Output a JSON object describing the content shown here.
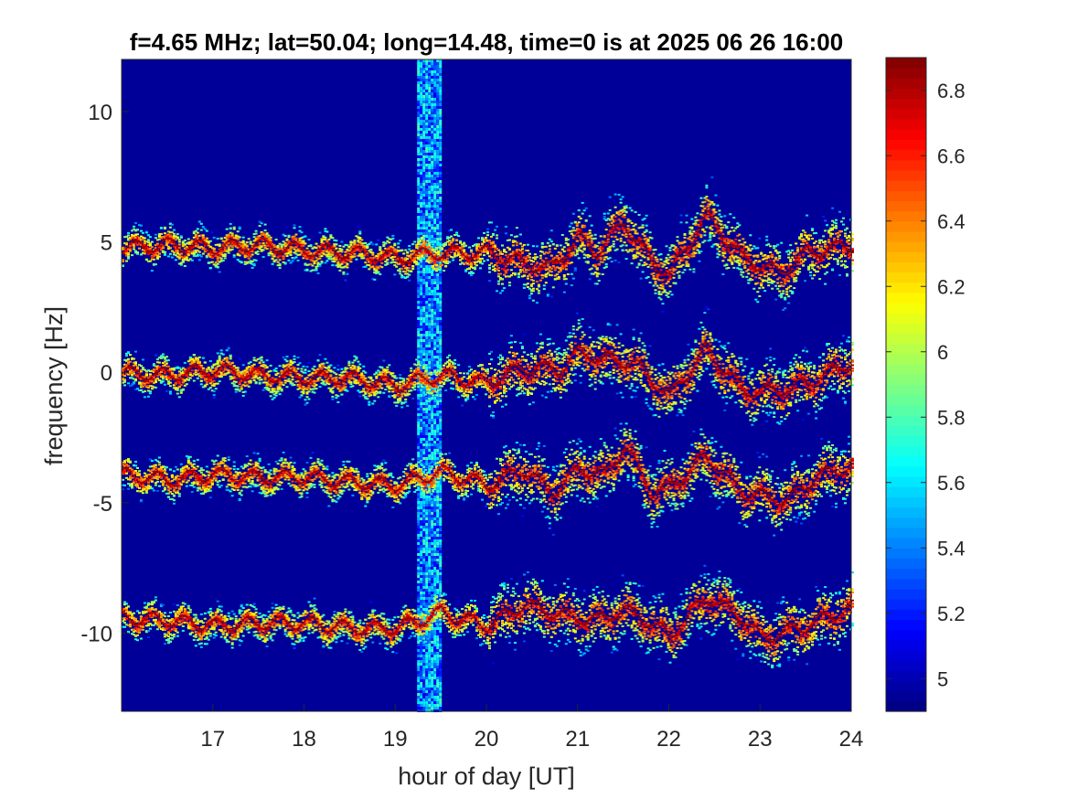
{
  "chart_data": {
    "type": "heatmap",
    "title": "f=4.65 MHz;  lat=50.04; long=14.48, time=0 is at 2025 06 26 16:00",
    "xlabel": "hour of day [UT]",
    "ylabel": "frequency [Hz]",
    "xlim": [
      16,
      24
    ],
    "ylim": [
      -13,
      12
    ],
    "x_ticks": [
      17,
      18,
      19,
      20,
      21,
      22,
      23,
      24
    ],
    "y_ticks": [
      10,
      5,
      0,
      -5,
      -10
    ],
    "colorbar": {
      "colormap": "jet",
      "range": [
        4.9,
        6.9
      ],
      "ticks": [
        6.8,
        6.6,
        6.4,
        6.2,
        6,
        5.8,
        5.6,
        5.4,
        5.2,
        5
      ]
    },
    "background_value": 4.95,
    "broadband_interference": {
      "x_start": 19.24,
      "x_end": 19.5,
      "level": 5.45
    },
    "traces": [
      {
        "baseline_hz": 4.8,
        "points": [
          [
            16.0,
            4.8
          ],
          [
            16.5,
            4.9
          ],
          [
            17.0,
            4.8
          ],
          [
            17.5,
            4.9
          ],
          [
            18.0,
            4.7
          ],
          [
            18.5,
            4.6
          ],
          [
            19.0,
            4.4
          ],
          [
            19.5,
            4.6
          ],
          [
            20.0,
            4.6
          ],
          [
            20.4,
            4.2
          ],
          [
            20.7,
            4.0
          ],
          [
            21.0,
            5.2
          ],
          [
            21.2,
            4.6
          ],
          [
            21.5,
            5.8
          ],
          [
            21.8,
            4.2
          ],
          [
            22.0,
            3.8
          ],
          [
            22.4,
            6.0
          ],
          [
            22.8,
            4.4
          ],
          [
            23.2,
            3.8
          ],
          [
            23.5,
            4.6
          ],
          [
            24.0,
            4.9
          ]
        ]
      },
      {
        "baseline_hz": 0.0,
        "points": [
          [
            16.0,
            0.0
          ],
          [
            16.5,
            -0.1
          ],
          [
            17.0,
            0.1
          ],
          [
            17.5,
            -0.1
          ],
          [
            18.0,
            -0.2
          ],
          [
            18.5,
            -0.2
          ],
          [
            19.0,
            -0.5
          ],
          [
            19.5,
            -0.1
          ],
          [
            20.0,
            -0.4
          ],
          [
            20.4,
            0.2
          ],
          [
            20.8,
            0.1
          ],
          [
            21.0,
            0.8
          ],
          [
            21.3,
            0.5
          ],
          [
            21.6,
            0.4
          ],
          [
            22.0,
            -0.9
          ],
          [
            22.4,
            0.9
          ],
          [
            22.8,
            -0.7
          ],
          [
            23.2,
            -0.7
          ],
          [
            23.5,
            -0.4
          ],
          [
            24.0,
            0.4
          ]
        ]
      },
      {
        "baseline_hz": -3.9,
        "points": [
          [
            16.0,
            -3.9
          ],
          [
            16.5,
            -4.1
          ],
          [
            17.0,
            -3.9
          ],
          [
            17.5,
            -4.0
          ],
          [
            18.0,
            -4.0
          ],
          [
            18.5,
            -4.2
          ],
          [
            19.0,
            -4.3
          ],
          [
            19.5,
            -3.8
          ],
          [
            20.0,
            -4.3
          ],
          [
            20.4,
            -3.7
          ],
          [
            20.7,
            -4.6
          ],
          [
            21.0,
            -3.7
          ],
          [
            21.3,
            -3.9
          ],
          [
            21.5,
            -2.8
          ],
          [
            21.8,
            -4.6
          ],
          [
            22.0,
            -4.4
          ],
          [
            22.4,
            -3.2
          ],
          [
            22.8,
            -4.6
          ],
          [
            23.3,
            -4.9
          ],
          [
            23.6,
            -4.0
          ],
          [
            24.0,
            -3.6
          ]
        ]
      },
      {
        "baseline_hz": -9.5,
        "points": [
          [
            16.0,
            -9.4
          ],
          [
            16.5,
            -9.5
          ],
          [
            17.0,
            -9.7
          ],
          [
            17.5,
            -9.6
          ],
          [
            18.0,
            -9.6
          ],
          [
            18.5,
            -9.8
          ],
          [
            19.0,
            -9.8
          ],
          [
            19.5,
            -9.2
          ],
          [
            20.0,
            -9.7
          ],
          [
            20.4,
            -8.9
          ],
          [
            20.8,
            -9.3
          ],
          [
            21.2,
            -9.5
          ],
          [
            21.5,
            -9.1
          ],
          [
            21.8,
            -9.6
          ],
          [
            22.0,
            -10.1
          ],
          [
            22.4,
            -8.6
          ],
          [
            22.8,
            -9.4
          ],
          [
            23.0,
            -10.2
          ],
          [
            23.5,
            -9.7
          ],
          [
            24.0,
            -9.0
          ]
        ]
      }
    ]
  }
}
